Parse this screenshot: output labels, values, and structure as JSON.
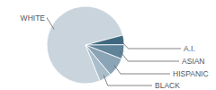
{
  "chart_data": {
    "type": "pie",
    "categories": [
      "WHITE",
      "A.I.",
      "ASIAN",
      "HISPANIC",
      "BLACK"
    ],
    "values": [
      77,
      4,
      6,
      8,
      5
    ],
    "colors": [
      "#c9d4dd",
      "#3f6880",
      "#5f8399",
      "#8ba4b6",
      "#aabdcb"
    ]
  }
}
